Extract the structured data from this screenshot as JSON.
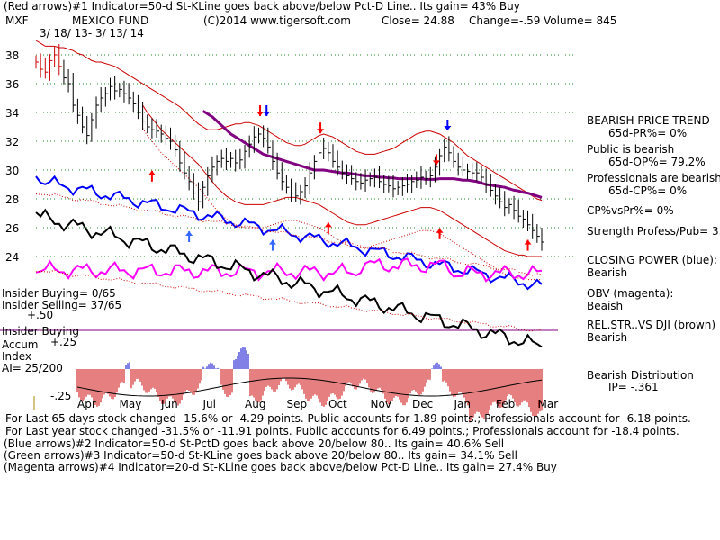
{
  "header": {
    "line1": "(Red arrows)#1 Indicator=50-d St-KLine goes back above/below Pct-D Line.. Its gain= 43% Buy",
    "symbol": "MXF",
    "name": "MEXICO FUND",
    "copyright": "(C)2014 www.tigersoft.com",
    "close": "Close=  24.88",
    "change": "Change=-.59",
    "volume": "Volume=  845",
    "dates": "3/ 18/ 13- 3/ 13/ 14"
  },
  "left_labels": {
    "insider_buying": "Insider Buying= 0/65",
    "insider_selling": "Insider Selling= 37/65",
    "plus50": "+.50",
    "insider_buying2": "Insider Buying",
    "accum": "Accum",
    "plus25": "+.25",
    "index": "Index",
    "ai": "AI= 25/200",
    "minus25": "-.25"
  },
  "right_panel": {
    "l1": "BEARISH PRICE TREND",
    "l2": "65d-PR%= 0%",
    "l3": "Public is bearish",
    "l4": "65d-OP%= 79.2%",
    "l5": "Professionals are bearish",
    "l6": "65d-CP%= 0%",
    "l7": "CP%vsPr%=  0%",
    "l8": "Strength Profess/Pub= 3.3",
    "l9": "CLOSING POWER (blue):",
    "l10": "Bearish",
    "l11": "OBV (magenta):",
    "l12": "Beaish",
    "l13": "REL.STR..VS DJI (brown)",
    "l14": "Bearish",
    "l15": "Bearish Distribution",
    "l16": "IP= -.361"
  },
  "footer": {
    "f1": "For Last 65 days stock changed -15.6% or -4.29 points.  Public accounts for  1.89 points.;  Professionals account for -6.18 points.",
    "f2": "For Last year stock changed -31.5% or -11.91 points.  Public accounts for  6.49 points.;  Professionals account for -18.4 points.",
    "f3": "(Blue arrows)#2 Indicator=50-d St-PctD goes back above 20/below 80.. Its gain= 40.6% Sell",
    "f4": "(Green arrows)#3 Indicator=50-d St-KLine goes back above 20/below 80.. Its gain= 34.1% Sell",
    "f5": "(Magenta arrows)#4 Indicator=20-d St-KLine goes back above/below Pct-D Line.. Its gain= 27.4% Buy"
  },
  "colors": {
    "price": "#000000",
    "band": "#cc0000",
    "ma": "#800080",
    "closing_power": "#0000ff",
    "obv": "#ff00ff",
    "rel_str": "#000000",
    "accum_neg": "#cc0000",
    "accum_pos": "#0000cc"
  },
  "chart_data": {
    "type": "line",
    "ylim": [
      22.5,
      39.5
    ],
    "y_ticks": [
      24,
      26,
      28,
      30,
      32,
      34,
      36,
      38
    ],
    "x_labels": [
      "Apr",
      "May",
      "Jun",
      "Jul",
      "Aug",
      "Sep",
      "Oct",
      "Nov",
      "Dec",
      "Jan",
      "Feb",
      "Mar"
    ],
    "price_close": [
      37.5,
      37,
      36.8,
      37.6,
      38,
      37.2,
      36.4,
      36,
      34.5,
      33.8,
      33,
      32.4,
      33.5,
      34.5,
      35,
      35.3,
      35.8,
      35.5,
      35.6,
      35.3,
      35,
      34.6,
      34,
      33.4,
      33,
      32.8,
      32.7,
      32.5,
      32.2,
      32,
      31.4,
      30.5,
      29.8,
      29.2,
      28.4,
      27.8,
      28.8,
      29.6,
      30.2,
      30.6,
      30.8,
      30.6,
      30.8,
      30.5,
      30.7,
      31.3,
      31.8,
      32.3,
      32.5,
      32.2,
      31.6,
      30.6,
      29.8,
      29.2,
      28.8,
      28.4,
      28.2,
      28.5,
      28.9,
      29.8,
      30.6,
      31.2,
      31.5,
      31.2,
      30.6,
      30.2,
      29.8,
      29.6,
      29.4,
      29.2,
      29.1,
      29.3,
      29.4,
      29.5,
      29.2,
      29,
      28.9,
      28.7,
      28.8,
      28.9,
      29,
      29.2,
      29.3,
      29.5,
      29.4,
      29.6,
      30.2,
      31,
      31.6,
      31.2,
      30.6,
      30.2,
      30,
      29.9,
      29.8,
      29.8,
      29.5,
      29,
      28.6,
      28.2,
      27.8,
      27.4,
      27.6,
      27.2,
      26.8,
      26.6,
      26.2,
      25.8,
      25.4,
      25
    ],
    "ma50": [
      null,
      null,
      null,
      null,
      null,
      null,
      null,
      null,
      null,
      null,
      null,
      null,
      null,
      null,
      null,
      null,
      null,
      null,
      null,
      null,
      null,
      null,
      null,
      null,
      null,
      null,
      null,
      null,
      null,
      null,
      null,
      null,
      null,
      null,
      null,
      null,
      34.1,
      33.9,
      33.7,
      33.4,
      33.1,
      32.8,
      32.5,
      32.3,
      32.1,
      31.9,
      31.7,
      31.5,
      31.3,
      31.1,
      31,
      30.9,
      30.8,
      30.7,
      30.6,
      30.5,
      30.4,
      30.3,
      30.2,
      30.1,
      30,
      30,
      30,
      29.95,
      29.9,
      29.85,
      29.8,
      29.8,
      29.75,
      29.7,
      29.65,
      29.6,
      29.6,
      29.55,
      29.5,
      29.5,
      29.45,
      29.45,
      29.4,
      29.4,
      29.4,
      29.4,
      29.4,
      29.4,
      29.35,
      29.35,
      29.35,
      29.4,
      29.4,
      29.4,
      29.4,
      29.35,
      29.3,
      29.3,
      29.25,
      29.2,
      29.1,
      29,
      28.95,
      28.9,
      28.85,
      28.8,
      28.7,
      28.6,
      28.55,
      28.45,
      28.4,
      28.3,
      28.2,
      28.1
    ],
    "band_upper": [
      39,
      38.8,
      38.6,
      38.6,
      38.6,
      38.5,
      38.5,
      38.4,
      38.3,
      38.1,
      38,
      37.8,
      37.6,
      37.5,
      37.5,
      37.4,
      37.3,
      37.2,
      37,
      36.8,
      36.6,
      36.4,
      36.2,
      36,
      35.8,
      35.6,
      35.4,
      35.2,
      35,
      34.8,
      34.6,
      34.4,
      34.1,
      33.8,
      33.5,
      33.2,
      33,
      32.8,
      32.8,
      32.8,
      32.9,
      33,
      33.1,
      33.2,
      33.2,
      33.3,
      33.3,
      33.2,
      33.1,
      32.9,
      32.7,
      32.5,
      32.3,
      32.1,
      31.9,
      31.8,
      31.7,
      31.7,
      31.8,
      32,
      32.2,
      32.4,
      32.5,
      32.4,
      32.3,
      32.1,
      31.9,
      31.7,
      31.5,
      31.3,
      31.2,
      31.1,
      31.1,
      31.1,
      31.2,
      31.3,
      31.4,
      31.5,
      31.7,
      31.9,
      32.1,
      32.3,
      32.5,
      32.6,
      32.7,
      32.7,
      32.6,
      32.5,
      32.3,
      32.1,
      31.9,
      31.6,
      31.3,
      31,
      30.8,
      30.6,
      30.4,
      30.2,
      30,
      29.8,
      29.6,
      29.4,
      29.2,
      29,
      28.8,
      28.6,
      28.4,
      28.2,
      28,
      27.9
    ],
    "band_lower": [
      null,
      null,
      null,
      null,
      null,
      null,
      null,
      null,
      null,
      null,
      null,
      null,
      null,
      null,
      null,
      null,
      null,
      null,
      null,
      null,
      null,
      null,
      null,
      34.5,
      34,
      33.6,
      33.2,
      32.8,
      32.5,
      32.2,
      31.9,
      31.6,
      31.3,
      31,
      30.7,
      30.4,
      30,
      29.6,
      29.2,
      28.8,
      28.5,
      28.2,
      28,
      27.8,
      27.7,
      27.6,
      27.6,
      27.6,
      27.6,
      27.6,
      27.7,
      27.8,
      27.9,
      28,
      28.1,
      28.1,
      28.1,
      28,
      27.9,
      27.8,
      27.7,
      27.6,
      27.4,
      27.2,
      27,
      26.8,
      26.6,
      26.4,
      26.3,
      26.2,
      26.2,
      26.2,
      26.3,
      26.4,
      26.5,
      26.6,
      26.7,
      26.8,
      26.9,
      27,
      27.1,
      27.2,
      27.3,
      27.4,
      27.4,
      27.4,
      27.3,
      27.2,
      27,
      26.8,
      26.6,
      26.4,
      26.2,
      26,
      25.8,
      25.6,
      25.4,
      25.2,
      25,
      24.8,
      24.6,
      24.4,
      24.3,
      24.2,
      24.1,
      24.1,
      24,
      24,
      24,
      24
    ],
    "red_arrows_down": [
      [
        49,
        33.6
      ],
      [
        62,
        32.4
      ],
      [
        87,
        30.2
      ]
    ],
    "red_arrows_up": [
      [
        25,
        30.4
      ],
      [
        63,
        26.8
      ],
      [
        87,
        26.4
      ],
      [
        106,
        25.6
      ]
    ],
    "blue_arrows_down": [
      [
        49,
        33.6
      ],
      [
        88,
        32.6
      ]
    ],
    "blue_arrows_up": [
      [
        33,
        26.2
      ],
      [
        51,
        25.6
      ]
    ]
  }
}
